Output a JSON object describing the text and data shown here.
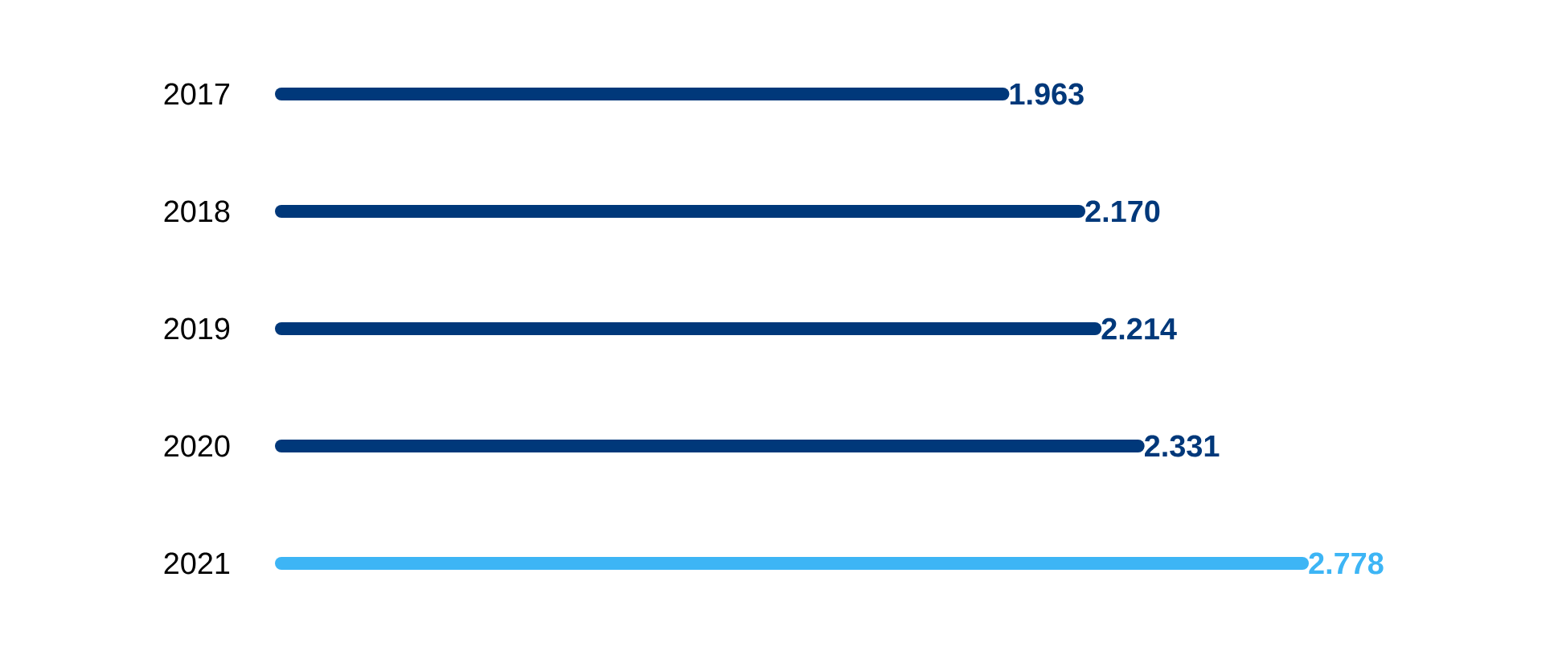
{
  "chart_data": {
    "type": "bar",
    "orientation": "horizontal",
    "categories": [
      "2017",
      "2018",
      "2019",
      "2020",
      "2021"
    ],
    "values": [
      1963,
      2170,
      2214,
      2331,
      2778
    ],
    "colors": [
      "#00387a",
      "#00387a",
      "#00387a",
      "#00387a",
      "#3db5f5"
    ],
    "value_labels": [
      "1.963",
      "2.170",
      "2.214",
      "2.331",
      "2.778"
    ],
    "tick_labels": "y"
  }
}
